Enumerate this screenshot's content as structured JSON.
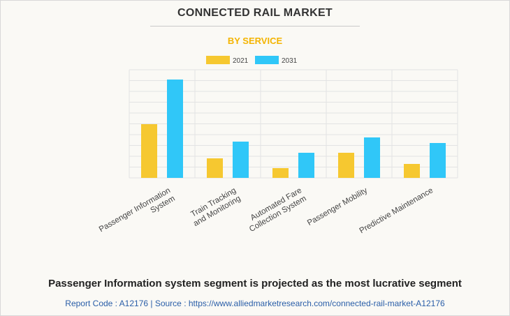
{
  "header": {
    "title": "CONNECTED RAIL MARKET",
    "subtitle": "BY SERVICE"
  },
  "colors": {
    "series_2021": "#f6c830",
    "series_2031": "#30c7f8",
    "subtitle": "#f4b400",
    "grid": "#e3e3e3"
  },
  "chart_data": {
    "type": "bar",
    "categories": [
      [
        "Passenger Information",
        "System"
      ],
      [
        "Train Tracking",
        "and Monitoring"
      ],
      [
        "Automated Fare",
        "Collection System"
      ],
      [
        "Passenger Mobility"
      ],
      [
        "Predictive Maintenance"
      ]
    ],
    "series": [
      {
        "name": "2021",
        "values": [
          77,
          28,
          14,
          36,
          20
        ]
      },
      {
        "name": "2031",
        "values": [
          141,
          52,
          36,
          58,
          50
        ]
      }
    ],
    "ylim": [
      0,
      155
    ],
    "grid": true,
    "legend": "top-center",
    "xlabel": "",
    "ylabel": ""
  },
  "caption": {
    "headline": "Passenger Information system segment is projected as the most lucrative segment",
    "footer": "Report Code : A12176  |  Source : https://www.alliedmarketresearch.com/connected-rail-market-A12176"
  }
}
